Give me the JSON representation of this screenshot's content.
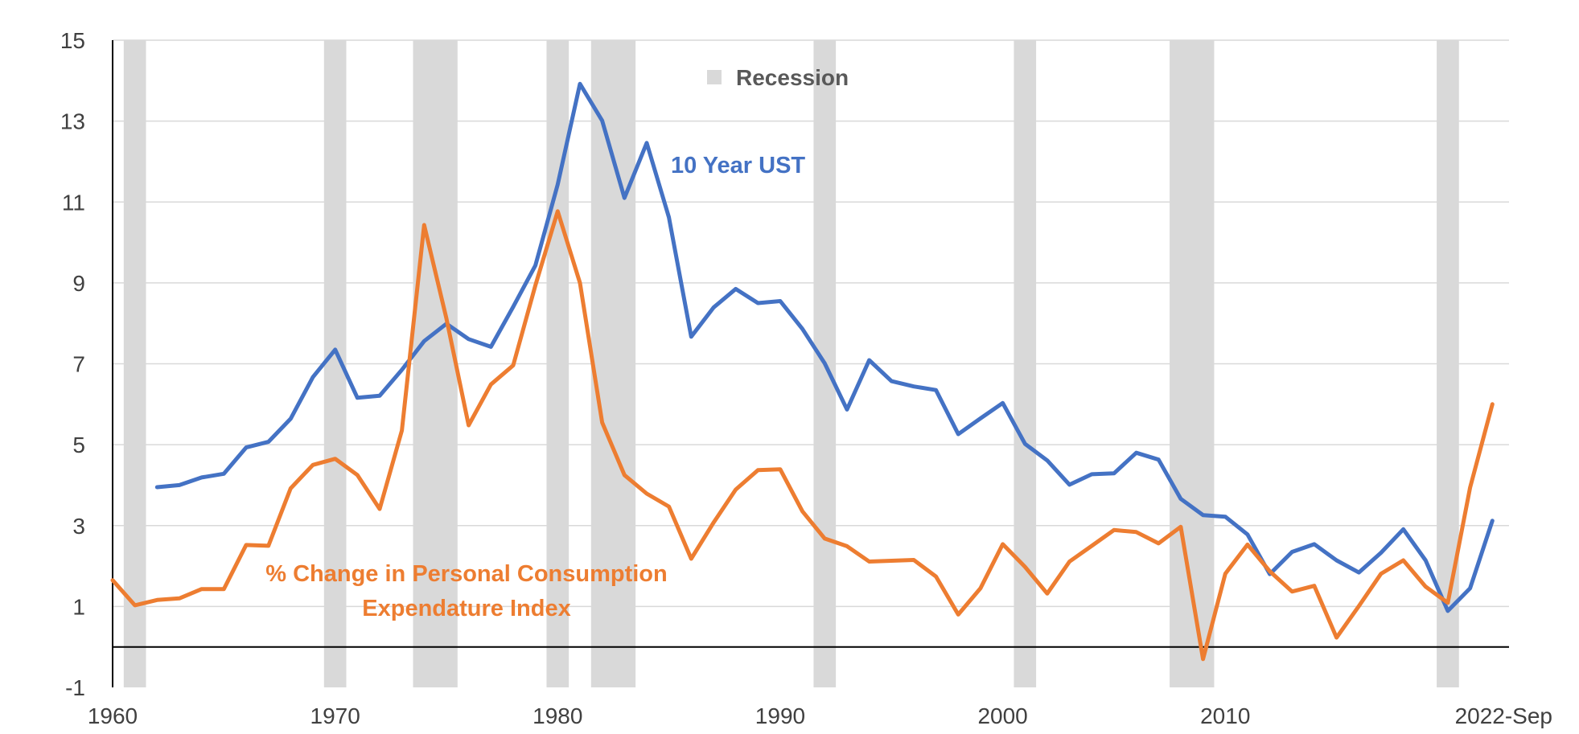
{
  "chart_data": {
    "type": "line",
    "title": "",
    "xlabel": "",
    "ylabel": "",
    "xlim": [
      1960,
      2022.75
    ],
    "ylim": [
      -1,
      15
    ],
    "y_ticks": [
      -1,
      1,
      3,
      5,
      7,
      9,
      11,
      13,
      15
    ],
    "x_ticks": [
      {
        "value": 1960,
        "label": "1960"
      },
      {
        "value": 1970,
        "label": "1970"
      },
      {
        "value": 1980,
        "label": "1980"
      },
      {
        "value": 1990,
        "label": "1990"
      },
      {
        "value": 2000,
        "label": "2000"
      },
      {
        "value": 2010,
        "label": "2010"
      },
      {
        "value": 2022.75,
        "label": "2022-Sep"
      }
    ],
    "zero_line": 0,
    "gridlines": true,
    "legend": {
      "label": "Recession",
      "position": "top-center",
      "color": "#d9d9d9"
    },
    "recessions": [
      [
        1960.5,
        1961.5
      ],
      [
        1969.5,
        1970.5
      ],
      [
        1973.5,
        1975.5
      ],
      [
        1979.5,
        1980.5
      ],
      [
        1981.5,
        1983.5
      ],
      [
        1991.5,
        1992.5
      ],
      [
        2000.5,
        2001.5
      ],
      [
        2007.5,
        2009.5
      ],
      [
        2019.5,
        2020.5
      ]
    ],
    "series": [
      {
        "name": "10 Year UST",
        "label": "10 Year UST",
        "color": "#4472c4",
        "x": [
          1962,
          1963,
          1964,
          1965,
          1966,
          1967,
          1968,
          1969,
          1970,
          1971,
          1972,
          1973,
          1974,
          1975,
          1976,
          1977,
          1978,
          1979,
          1980,
          1981,
          1982,
          1983,
          1984,
          1985,
          1986,
          1987,
          1988,
          1989,
          1990,
          1991,
          1992,
          1993,
          1994,
          1995,
          1996,
          1997,
          1998,
          1999,
          2000,
          2001,
          2002,
          2003,
          2004,
          2005,
          2006,
          2007,
          2008,
          2009,
          2010,
          2011,
          2012,
          2013,
          2014,
          2015,
          2016,
          2017,
          2018,
          2019,
          2020,
          2021,
          2022
        ],
        "values": [
          3.95,
          4.0,
          4.19,
          4.28,
          4.93,
          5.07,
          5.64,
          6.67,
          7.35,
          6.16,
          6.21,
          6.85,
          7.56,
          7.99,
          7.61,
          7.42,
          8.41,
          9.43,
          11.43,
          13.92,
          13.01,
          11.1,
          12.46,
          10.62,
          7.67,
          8.39,
          8.85,
          8.5,
          8.55,
          7.86,
          7.01,
          5.87,
          7.09,
          6.57,
          6.44,
          6.35,
          5.26,
          5.65,
          6.03,
          5.02,
          4.61,
          4.01,
          4.27,
          4.29,
          4.8,
          4.63,
          3.66,
          3.26,
          3.22,
          2.78,
          1.8,
          2.35,
          2.54,
          2.14,
          1.84,
          2.33,
          2.91,
          2.14,
          0.89,
          1.45,
          3.12
        ]
      },
      {
        "name": "% Change in Personal Consumption Expendature Index",
        "label_lines": [
          "% Change in Personal Consumption",
          "Expendature Index"
        ],
        "color": "#ed7d31",
        "x": [
          1960,
          1961,
          1962,
          1963,
          1964,
          1965,
          1966,
          1967,
          1968,
          1969,
          1970,
          1971,
          1972,
          1973,
          1974,
          1975,
          1976,
          1977,
          1978,
          1979,
          1980,
          1981,
          1982,
          1983,
          1984,
          1985,
          1986,
          1987,
          1988,
          1989,
          1990,
          1991,
          1992,
          1993,
          1994,
          1995,
          1996,
          1997,
          1998,
          1999,
          2000,
          2001,
          2002,
          2003,
          2004,
          2005,
          2006,
          2007,
          2008,
          2009,
          2010,
          2011,
          2012,
          2013,
          2014,
          2015,
          2016,
          2017,
          2018,
          2019,
          2020,
          2021,
          2022
        ],
        "values": [
          1.65,
          1.03,
          1.16,
          1.2,
          1.43,
          1.43,
          2.52,
          2.5,
          3.92,
          4.5,
          4.65,
          4.25,
          3.41,
          5.35,
          10.43,
          8.12,
          5.48,
          6.49,
          6.96,
          8.94,
          10.77,
          9.0,
          5.55,
          4.25,
          3.79,
          3.47,
          2.18,
          3.07,
          3.89,
          4.37,
          4.39,
          3.35,
          2.68,
          2.49,
          2.11,
          2.13,
          2.15,
          1.74,
          0.8,
          1.45,
          2.54,
          1.98,
          1.32,
          2.11,
          2.5,
          2.89,
          2.84,
          2.56,
          2.97,
          -0.3,
          1.81,
          2.53,
          1.87,
          1.37,
          1.51,
          0.23,
          1.01,
          1.81,
          2.14,
          1.49,
          1.09,
          3.94,
          6.0
        ]
      }
    ]
  }
}
